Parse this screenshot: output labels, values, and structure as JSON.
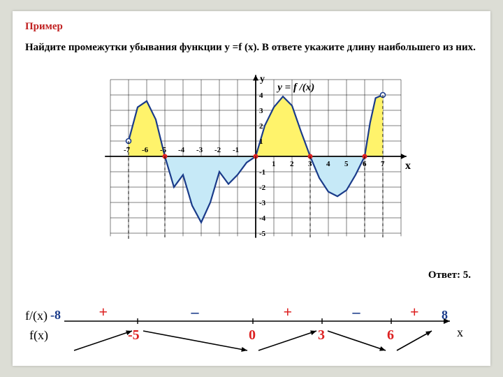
{
  "title": "Пример",
  "prompt": "Найдите промежутки убывания функции у =f (x). В ответе укажите длину наибольшего из них.",
  "answer": "Ответ: 5.",
  "chart": {
    "type": "line",
    "bg": "#ffffff",
    "grid_color": "#000000",
    "axis_label_y": "y",
    "axis_label_x": "x",
    "curve_label": "y = f /(x)",
    "x_ticks": [
      -7,
      -6,
      -5,
      -4,
      -3,
      -2,
      -1,
      1,
      2,
      3,
      4,
      5,
      6,
      7
    ],
    "y_ticks_pos": [
      1,
      2,
      3,
      4
    ],
    "y_ticks_neg": [
      -1,
      -2,
      -3,
      -4,
      -5
    ],
    "xlim": [
      -8.5,
      8.5
    ],
    "ylim": [
      -5.5,
      5.5
    ],
    "fill_pos": "#fff36b",
    "fill_neg": "#c6e9f7",
    "curve_color": "#1a3b8a",
    "curve_width": 2.2,
    "zero_color": "#d22",
    "dash_lines_x": [
      -5,
      0,
      3,
      6
    ],
    "label_fontsize": 11
  },
  "signline": {
    "fprime_label": "f/(x)",
    "f_label": "f(x)",
    "axis_label": "x",
    "left_bound": -8,
    "right_bound": 8,
    "tick_values": [
      -5,
      0,
      3,
      6
    ],
    "signs": [
      "+",
      "–",
      "+",
      "–",
      "+"
    ],
    "colors": {
      "bound": "#1a3b8a",
      "tick": "#d22",
      "sign_pos": "#d22",
      "sign_neg": "#1a3b8a",
      "arrow": "#000"
    },
    "fontsize_sign": 22,
    "fontsize_tick": 20,
    "fontsize_bound": 18
  }
}
